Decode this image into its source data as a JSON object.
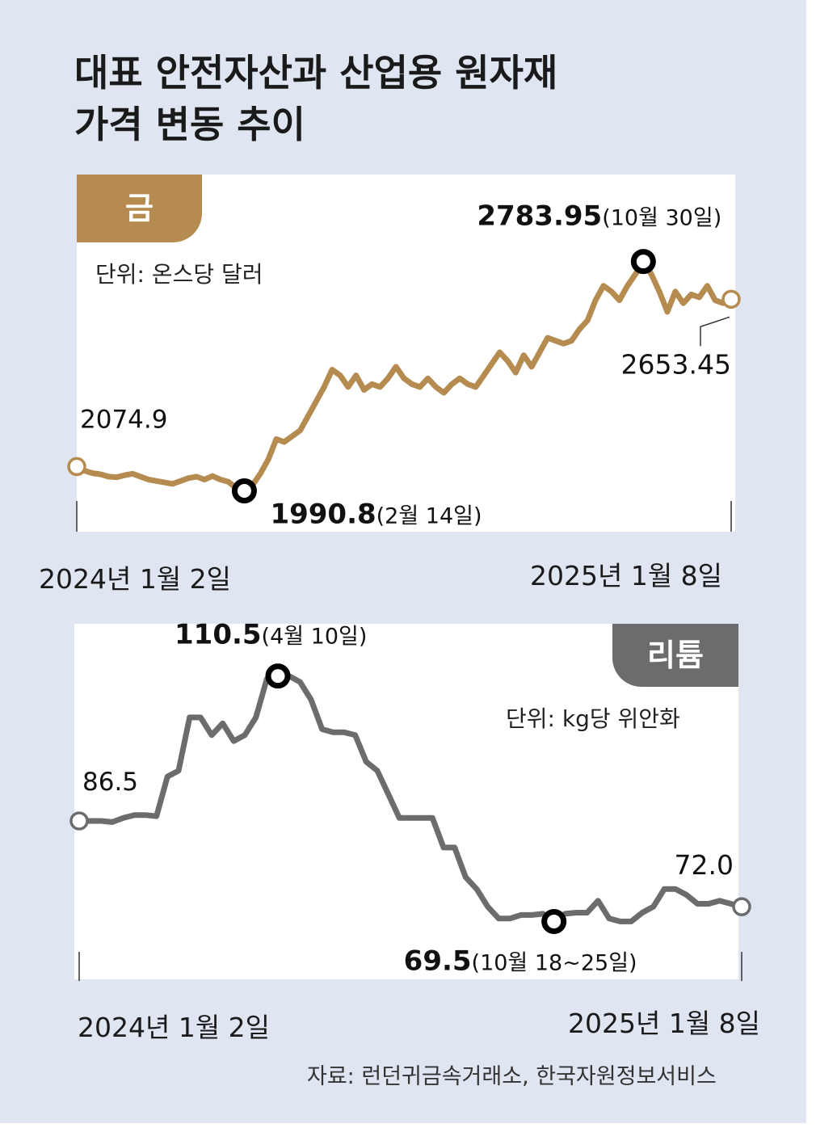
{
  "title": "대표 안전자산과 산업용 원자재\n가격 변동 추이",
  "source": "자료: 런던귀금속거래소, 한국자원정보서비스",
  "colors": {
    "gold": "#b58b4f",
    "lithium": "#6b6c6e",
    "background": "#dfe5f1"
  },
  "chart_data": [
    {
      "type": "line",
      "name": "금",
      "unit": "단위: 온스당 달러",
      "start_date": "2024년 1월 2일",
      "end_date": "2025년 1월 8일",
      "ylim": [
        1900,
        2850
      ],
      "values": [
        2074.9,
        2060.0,
        2052.0,
        2048.0,
        2040.0,
        2038.0,
        2045.0,
        2050.0,
        2040.0,
        2030.0,
        2025.0,
        2020.0,
        2015.0,
        2025.0,
        2035.0,
        2040.0,
        2030.0,
        2042.0,
        2030.0,
        2022.0,
        2000.0,
        1990.8,
        2010.0,
        2050.0,
        2100.0,
        2170.0,
        2160.0,
        2180.0,
        2200.0,
        2250.0,
        2300.0,
        2350.0,
        2410.0,
        2390.0,
        2350.0,
        2390.0,
        2340.0,
        2360.0,
        2350.0,
        2380.0,
        2420.0,
        2380.0,
        2360.0,
        2350.0,
        2380.0,
        2350.0,
        2330.0,
        2360.0,
        2380.0,
        2360.0,
        2350.0,
        2390.0,
        2430.0,
        2470.0,
        2440.0,
        2400.0,
        2460.0,
        2420.0,
        2470.0,
        2520.0,
        2510.0,
        2500.0,
        2510.0,
        2550.0,
        2580.0,
        2650.0,
        2700.0,
        2680.0,
        2650.0,
        2700.0,
        2740.0,
        2783.95,
        2740.0,
        2680.0,
        2610.0,
        2680.0,
        2640.0,
        2670.0,
        2660.0,
        2700.0,
        2650.0,
        2640.0,
        2653.45
      ],
      "annotations": [
        {
          "label": "start",
          "value_text": "2074.9",
          "detail_text": ""
        },
        {
          "label": "low",
          "value_text": "1990.8",
          "detail_text": "(2월 14일)"
        },
        {
          "label": "high",
          "value_text": "2783.95",
          "detail_text": "(10월 30일)"
        },
        {
          "label": "end",
          "value_text": "2653.45",
          "detail_text": ""
        }
      ]
    },
    {
      "type": "line",
      "name": "리튬",
      "unit": "단위: kg당 위안화",
      "start_date": "2024년 1월 2일",
      "end_date": "2025년 1월 8일",
      "ylim": [
        60,
        116
      ],
      "values": [
        86.5,
        86.5,
        86.5,
        86.3,
        87.0,
        87.5,
        87.5,
        87.3,
        94.0,
        95.0,
        104.0,
        104.0,
        101.0,
        103.0,
        100.0,
        101.0,
        104.0,
        110.5,
        111.0,
        111.0,
        110.0,
        107.0,
        102.0,
        101.5,
        101.5,
        101.0,
        96.5,
        95.0,
        91.0,
        87.0,
        87.0,
        87.0,
        87.0,
        82.0,
        82.0,
        77.0,
        75.0,
        72.0,
        70.0,
        70.0,
        70.6,
        70.6,
        70.8,
        69.5,
        70.8,
        71.0,
        71.0,
        73.0,
        70.0,
        69.5,
        69.5,
        71.0,
        72.0,
        75.0,
        75.0,
        74.0,
        72.5,
        72.5,
        73.0,
        72.5,
        72.0
      ],
      "annotations": [
        {
          "label": "start",
          "value_text": "86.5",
          "detail_text": ""
        },
        {
          "label": "high",
          "value_text": "110.5",
          "detail_text": "(4월 10일)"
        },
        {
          "label": "low",
          "value_text": "69.5",
          "detail_text": "(10월 18~25일)"
        },
        {
          "label": "end",
          "value_text": "72.0",
          "detail_text": ""
        }
      ]
    }
  ]
}
